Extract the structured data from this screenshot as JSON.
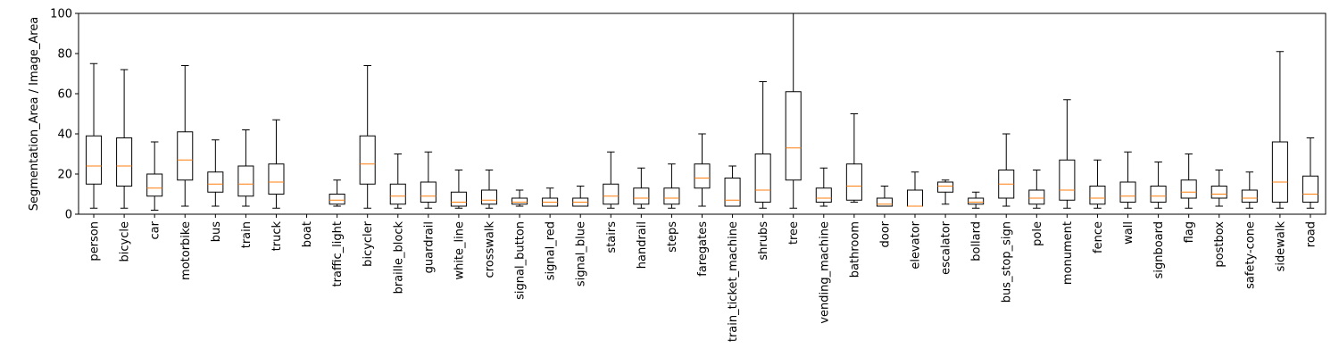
{
  "chart_data": {
    "type": "box",
    "title": "",
    "xlabel": "",
    "ylabel": "Segmentation_Area / Image_Area",
    "ylim": [
      0,
      100
    ],
    "yticks": [
      0,
      20,
      40,
      60,
      80,
      100
    ],
    "grid": false,
    "colors": {
      "box": "#000000",
      "median": "#ff7f0e"
    },
    "categories": [
      "person",
      "bicycle",
      "car",
      "motorbike",
      "bus",
      "train",
      "truck",
      "boat",
      "traffic_light",
      "bicycler",
      "braille_block",
      "guardrail",
      "white_line",
      "crosswalk",
      "signal_button",
      "signal_red",
      "signal_blue",
      "stairs",
      "handrail",
      "steps",
      "faregates",
      "train_ticket_machine",
      "shrubs",
      "tree",
      "vending_machine",
      "bathroom",
      "door",
      "elevator",
      "escalator",
      "bollard",
      "bus_stop_sign",
      "pole",
      "monument",
      "fence",
      "wall",
      "signboard",
      "flag",
      "postbox",
      "safety-cone",
      "sidewalk",
      "road"
    ],
    "boxes": [
      {
        "whislo": 3,
        "q1": 15,
        "med": 24,
        "q3": 39,
        "whishi": 75
      },
      {
        "whislo": 3,
        "q1": 14,
        "med": 24,
        "q3": 38,
        "whishi": 72
      },
      {
        "whislo": 2,
        "q1": 9,
        "med": 13,
        "q3": 20,
        "whishi": 36
      },
      {
        "whislo": 4,
        "q1": 17,
        "med": 27,
        "q3": 41,
        "whishi": 74
      },
      {
        "whislo": 4,
        "q1": 11,
        "med": 15,
        "q3": 21,
        "whishi": 37
      },
      {
        "whislo": 4,
        "q1": 9,
        "med": 15,
        "q3": 24,
        "whishi": 42
      },
      {
        "whislo": 3,
        "q1": 10,
        "med": 16,
        "q3": 25,
        "whishi": 47
      },
      null,
      {
        "whislo": 4,
        "q1": 5,
        "med": 7,
        "q3": 10,
        "whishi": 17
      },
      {
        "whislo": 3,
        "q1": 15,
        "med": 25,
        "q3": 39,
        "whishi": 74
      },
      {
        "whislo": 3,
        "q1": 5,
        "med": 9,
        "q3": 15,
        "whishi": 30
      },
      {
        "whislo": 3,
        "q1": 6,
        "med": 9,
        "q3": 16,
        "whishi": 31
      },
      {
        "whislo": 3,
        "q1": 4,
        "med": 6,
        "q3": 11,
        "whishi": 22
      },
      {
        "whislo": 3,
        "q1": 5,
        "med": 7,
        "q3": 12,
        "whishi": 22
      },
      {
        "whislo": 4,
        "q1": 5,
        "med": 6,
        "q3": 8,
        "whishi": 12
      },
      {
        "whislo": 4,
        "q1": 4,
        "med": 6,
        "q3": 8,
        "whishi": 13
      },
      {
        "whislo": 4,
        "q1": 4,
        "med": 6,
        "q3": 8,
        "whishi": 14
      },
      {
        "whislo": 3,
        "q1": 5,
        "med": 9,
        "q3": 15,
        "whishi": 31
      },
      {
        "whislo": 3,
        "q1": 5,
        "med": 8,
        "q3": 13,
        "whishi": 23
      },
      {
        "whislo": 3,
        "q1": 5,
        "med": 8,
        "q3": 13,
        "whishi": 25
      },
      {
        "whislo": 4,
        "q1": 13,
        "med": 18,
        "q3": 25,
        "whishi": 40
      },
      {
        "whislo": 4,
        "q1": 4,
        "med": 7,
        "q3": 18,
        "whishi": 24
      },
      {
        "whislo": 3,
        "q1": 6,
        "med": 12,
        "q3": 30,
        "whishi": 66
      },
      {
        "whislo": 3,
        "q1": 17,
        "med": 33,
        "q3": 61,
        "whishi": 100
      },
      {
        "whislo": 4,
        "q1": 6,
        "med": 8,
        "q3": 13,
        "whishi": 23
      },
      {
        "whislo": 6,
        "q1": 7,
        "med": 14,
        "q3": 25,
        "whishi": 50
      },
      {
        "whislo": 4,
        "q1": 4,
        "med": 5,
        "q3": 8,
        "whishi": 14
      },
      {
        "whislo": 4,
        "q1": 4,
        "med": 4,
        "q3": 12,
        "whishi": 21
      },
      {
        "whislo": 5,
        "q1": 11,
        "med": 14,
        "q3": 16,
        "whishi": 17
      },
      {
        "whislo": 3,
        "q1": 5,
        "med": 6,
        "q3": 8,
        "whishi": 11
      },
      {
        "whislo": 4,
        "q1": 8,
        "med": 15,
        "q3": 22,
        "whishi": 40
      },
      {
        "whislo": 3,
        "q1": 5,
        "med": 8,
        "q3": 12,
        "whishi": 22
      },
      {
        "whislo": 3,
        "q1": 7,
        "med": 12,
        "q3": 27,
        "whishi": 57
      },
      {
        "whislo": 3,
        "q1": 5,
        "med": 8,
        "q3": 14,
        "whishi": 27
      },
      {
        "whislo": 3,
        "q1": 6,
        "med": 9,
        "q3": 16,
        "whishi": 31
      },
      {
        "whislo": 3,
        "q1": 6,
        "med": 9,
        "q3": 14,
        "whishi": 26
      },
      {
        "whislo": 3,
        "q1": 8,
        "med": 11,
        "q3": 17,
        "whishi": 30
      },
      {
        "whislo": 4,
        "q1": 8,
        "med": 10,
        "q3": 14,
        "whishi": 22
      },
      {
        "whislo": 3,
        "q1": 6,
        "med": 8,
        "q3": 12,
        "whishi": 21
      },
      {
        "whislo": 3,
        "q1": 6,
        "med": 16,
        "q3": 36,
        "whishi": 81
      },
      {
        "whislo": 3,
        "q1": 6,
        "med": 10,
        "q3": 19,
        "whishi": 38
      }
    ]
  }
}
